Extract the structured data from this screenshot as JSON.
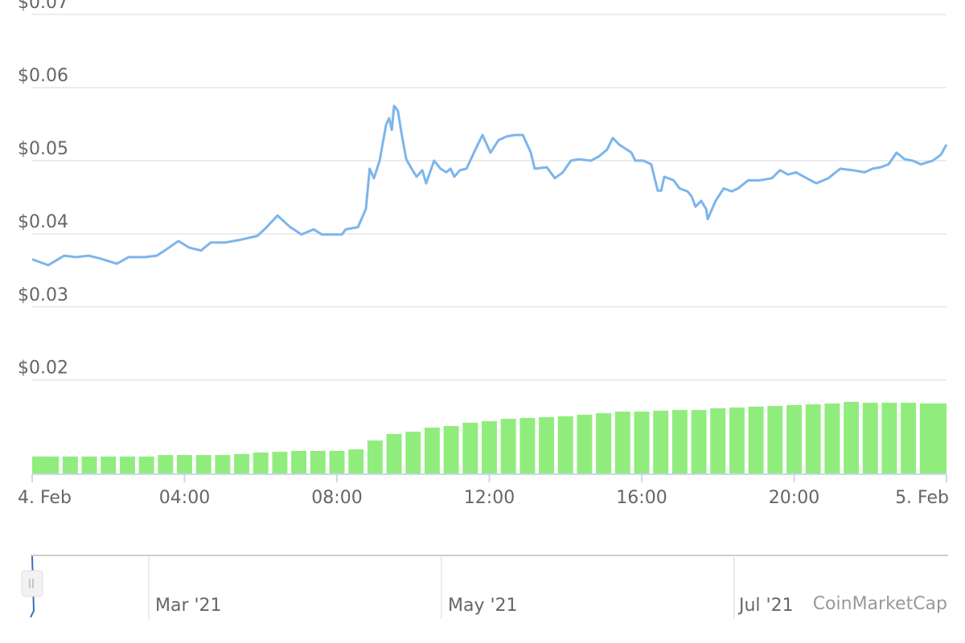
{
  "chart_data": {
    "type": "line",
    "x": [
      0,
      0.42,
      0.84,
      1.16,
      1.48,
      1.79,
      2.22,
      2.53,
      2.96,
      3.27,
      3.48,
      3.84,
      4.12,
      4.43,
      4.69,
      5.07,
      5.49,
      5.91,
      6.12,
      6.44,
      6.75,
      7.07,
      7.39,
      7.6,
      7.81,
      8.13,
      8.23,
      8.55,
      8.76,
      8.86,
      8.97,
      9.12,
      9.29,
      9.37,
      9.44,
      9.5,
      9.6,
      9.71,
      9.82,
      9.96,
      10.09,
      10.24,
      10.34,
      10.55,
      10.72,
      10.87,
      10.98,
      11.08,
      11.23,
      11.4,
      11.65,
      11.82,
      12.03,
      12.24,
      12.45,
      12.66,
      12.88,
      13.09,
      13.19,
      13.51,
      13.72,
      13.93,
      14.14,
      14.35,
      14.67,
      14.88,
      15.09,
      15.24,
      15.41,
      15.73,
      15.83,
      16.04,
      16.25,
      16.42,
      16.51,
      16.59,
      16.84,
      16.99,
      17.2,
      17.31,
      17.41,
      17.56,
      17.69,
      17.73,
      17.94,
      18.15,
      18.36,
      18.53,
      18.79,
      19.1,
      19.42,
      19.63,
      19.84,
      20.05,
      20.26,
      20.58,
      20.9,
      21.21,
      21.53,
      21.85,
      22.06,
      22.27,
      22.48,
      22.69,
      22.9,
      23.11,
      23.32,
      23.64,
      23.85,
      24
    ],
    "series": [
      {
        "color": "#7cb5ec",
        "values": [
          0.0365,
          0.0357,
          0.037,
          0.0368,
          0.037,
          0.0366,
          0.0359,
          0.0368,
          0.0368,
          0.037,
          0.0377,
          0.039,
          0.0381,
          0.0377,
          0.0388,
          0.0388,
          0.0392,
          0.0397,
          0.0407,
          0.0425,
          0.041,
          0.0399,
          0.0406,
          0.0399,
          0.0399,
          0.0399,
          0.0406,
          0.0409,
          0.0434,
          0.0489,
          0.0476,
          0.05,
          0.0549,
          0.0558,
          0.0542,
          0.0575,
          0.0568,
          0.0533,
          0.0502,
          0.0489,
          0.0478,
          0.0487,
          0.0469,
          0.05,
          0.0489,
          0.0484,
          0.0489,
          0.0478,
          0.0487,
          0.0489,
          0.0517,
          0.0535,
          0.0511,
          0.0528,
          0.0533,
          0.0535,
          0.0535,
          0.0511,
          0.0489,
          0.0491,
          0.0476,
          0.0484,
          0.05,
          0.0502,
          0.05,
          0.0506,
          0.0515,
          0.0531,
          0.0522,
          0.0511,
          0.05,
          0.05,
          0.0495,
          0.0459,
          0.0459,
          0.0478,
          0.0473,
          0.0462,
          0.0458,
          0.0451,
          0.0437,
          0.0445,
          0.0434,
          0.042,
          0.0445,
          0.0462,
          0.0458,
          0.0462,
          0.0473,
          0.0473,
          0.0476,
          0.0487,
          0.0481,
          0.0484,
          0.0478,
          0.0469,
          0.0476,
          0.0489,
          0.0487,
          0.0484,
          0.0489,
          0.0491,
          0.0495,
          0.0511,
          0.0502,
          0.05,
          0.0495,
          0.05,
          0.0508,
          0.0522
        ]
      }
    ],
    "volume": {
      "color": "#90ed7d",
      "ylim": [
        0,
        100
      ],
      "x": [
        0,
        0.5,
        1,
        1.5,
        2,
        2.5,
        3,
        3.5,
        4,
        4.5,
        5,
        5.5,
        6,
        6.5,
        7,
        7.5,
        8,
        8.5,
        9,
        9.5,
        10,
        10.5,
        11,
        11.5,
        12,
        12.5,
        13,
        13.5,
        14,
        14.5,
        15,
        15.5,
        16,
        16.5,
        17,
        17.5,
        18,
        18.5,
        19,
        19.5,
        20,
        20.5,
        21,
        21.5,
        22,
        22.5,
        23,
        23.5,
        24
      ],
      "values": [
        12.2,
        12.2,
        12.2,
        12.2,
        12.2,
        12.2,
        12.2,
        13.3,
        13.3,
        13.3,
        13.3,
        14,
        15,
        15.5,
        16.1,
        16.1,
        16.1,
        17.2,
        23.3,
        27.8,
        29.4,
        32.2,
        33.3,
        35.6,
        36.7,
        38.3,
        38.9,
        39.4,
        40,
        41.1,
        42.2,
        43.3,
        43.3,
        43.9,
        44.4,
        44.4,
        45.6,
        46.1,
        46.7,
        47.2,
        47.8,
        48.3,
        48.9,
        50,
        49.4,
        49.4,
        49.4,
        48.9,
        48.9
      ]
    },
    "xlim": [
      0,
      24
    ],
    "xticks": [
      {
        "value": 0,
        "label": "4. Feb"
      },
      {
        "value": 4,
        "label": "04:00"
      },
      {
        "value": 8,
        "label": "08:00"
      },
      {
        "value": 12,
        "label": "12:00"
      },
      {
        "value": 16,
        "label": "16:00"
      },
      {
        "value": 20,
        "label": "20:00"
      },
      {
        "value": 24,
        "label": "5. Feb"
      }
    ],
    "ylim": [
      0.0071,
      0.07
    ],
    "yticks": [
      {
        "value": 0.02,
        "label": "$0.02"
      },
      {
        "value": 0.03,
        "label": "$0.03"
      },
      {
        "value": 0.04,
        "label": "$0.04"
      },
      {
        "value": 0.05,
        "label": "$0.05"
      },
      {
        "value": 0.06,
        "label": "$0.06"
      },
      {
        "value": 0.07,
        "label": "$0.07"
      }
    ],
    "grid": true,
    "navigator": {
      "labels": [
        "Mar '21",
        "May '21",
        "Jul '21"
      ]
    },
    "credit": "CoinMarketCap"
  }
}
